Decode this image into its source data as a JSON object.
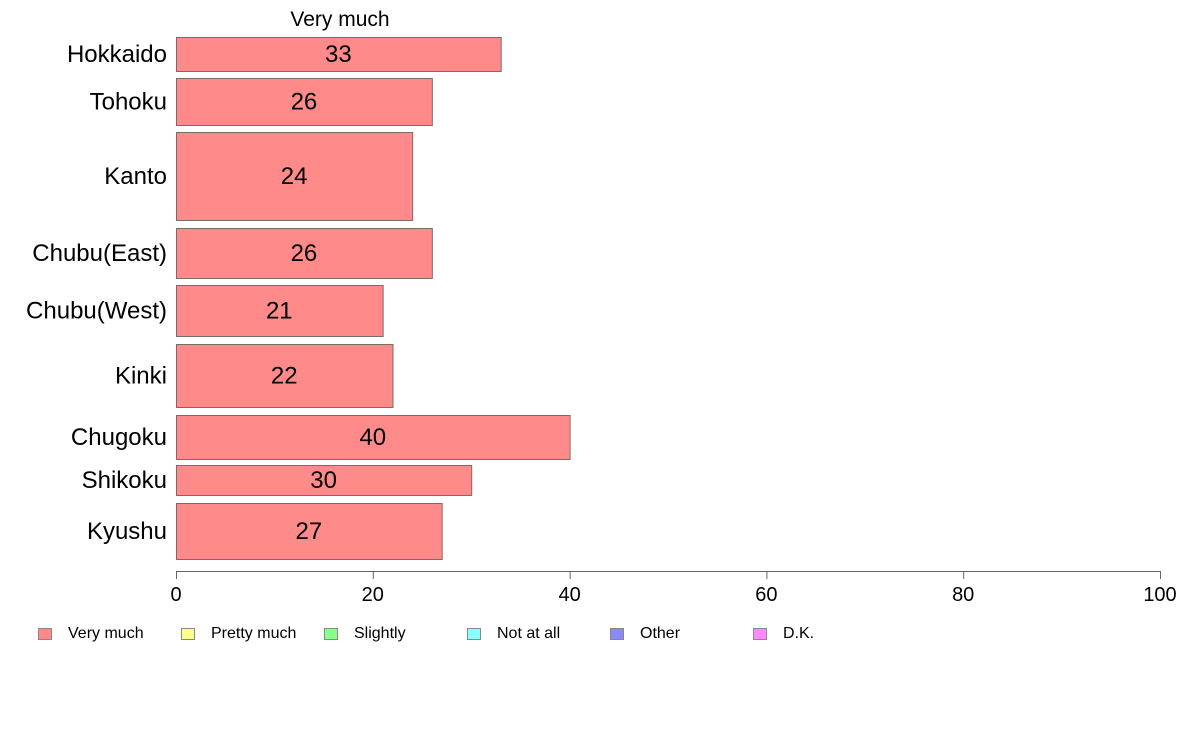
{
  "chart_data": {
    "type": "bar",
    "orientation": "horizontal",
    "title": "Very much",
    "categories": [
      "Hokkaido",
      "Tohoku",
      "Kanto",
      "Chubu(East)",
      "Chubu(West)",
      "Kinki",
      "Chugoku",
      "Shikoku",
      "Kyushu"
    ],
    "series": [
      {
        "name": "Very much",
        "values": [
          33,
          26,
          24,
          26,
          21,
          22,
          40,
          30,
          27
        ],
        "color": "#ff8a8a"
      }
    ],
    "data_labels": [
      "33",
      "26",
      "24",
      "26",
      "21",
      "22",
      "40",
      "30",
      "27"
    ],
    "xlim": [
      0,
      100
    ],
    "x_ticks": [
      "0",
      "20",
      "40",
      "60",
      "80",
      "100"
    ],
    "grid": false,
    "legend_position": "bottom"
  },
  "legend": [
    {
      "label": "Very much",
      "color": "#ff8a8a"
    },
    {
      "label": "Pretty much",
      "color": "#ffff8a"
    },
    {
      "label": "Slightly",
      "color": "#8aff8a"
    },
    {
      "label": "Not at all",
      "color": "#8affff"
    },
    {
      "label": "Other",
      "color": "#8a8aff"
    },
    {
      "label": "D.K.",
      "color": "#ff8aff"
    }
  ]
}
